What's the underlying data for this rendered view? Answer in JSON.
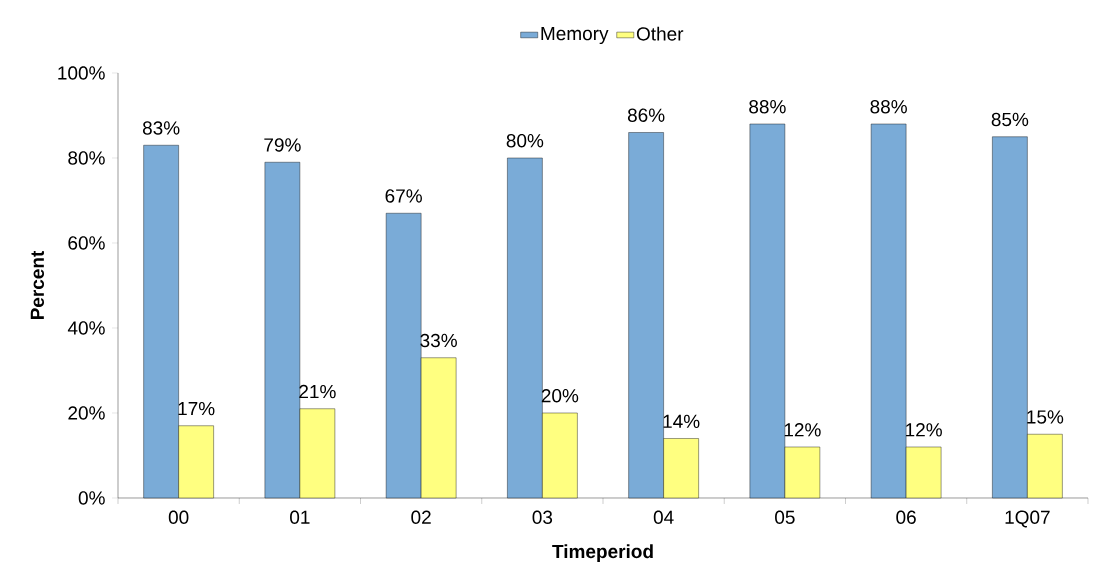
{
  "chart_data": {
    "type": "bar",
    "xlabel": "Timeperiod",
    "ylabel": "Percent",
    "categories": [
      "00",
      "01",
      "02",
      "03",
      "04",
      "05",
      "06",
      "1Q07"
    ],
    "series": [
      {
        "name": "Memory",
        "color": "#7aabd7",
        "values": [
          83,
          79,
          67,
          80,
          86,
          88,
          88,
          85
        ],
        "value_labels": [
          "83%",
          "79%",
          "67%",
          "80%",
          "86%",
          "88%",
          "88%",
          "85%"
        ]
      },
      {
        "name": "Other",
        "color": "#ffff80",
        "values": [
          17,
          21,
          33,
          20,
          14,
          12,
          12,
          15
        ],
        "value_labels": [
          "17%",
          "21%",
          "33%",
          "20%",
          "14%",
          "12%",
          "12%",
          "15%"
        ]
      }
    ],
    "ylim": [
      0,
      100
    ],
    "yticks": [
      {
        "value": 0,
        "label": "0%"
      },
      {
        "value": 20,
        "label": "20%"
      },
      {
        "value": 40,
        "label": "40%"
      },
      {
        "value": 60,
        "label": "60%"
      },
      {
        "value": 80,
        "label": "80%"
      },
      {
        "value": 100,
        "label": "100%"
      }
    ],
    "legend": "top",
    "grid": false
  }
}
